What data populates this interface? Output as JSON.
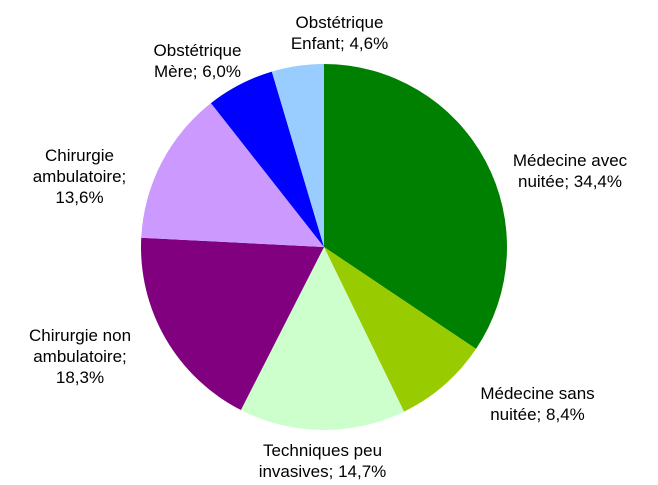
{
  "chart_data": {
    "type": "pie",
    "categories": [
      "Médecine avec nuitée",
      "Médecine sans nuitée",
      "Techniques peu invasives",
      "Chirurgie non ambulatoire",
      "Chirurgie ambulatoire",
      "Obstétrique Mère",
      "Obstétrique Enfant"
    ],
    "values": [
      34.4,
      8.4,
      14.7,
      18.3,
      13.6,
      6.0,
      4.6
    ],
    "value_labels": [
      "34,4%",
      "8,4%",
      "14,7%",
      "18,3%",
      "13,6%",
      "6,0%",
      "4,6%"
    ],
    "label_separator": ";",
    "colors": [
      "#008000",
      "#99cc00",
      "#ccffcc",
      "#800080",
      "#cc99ff",
      "#0000ff",
      "#99ccff"
    ]
  }
}
